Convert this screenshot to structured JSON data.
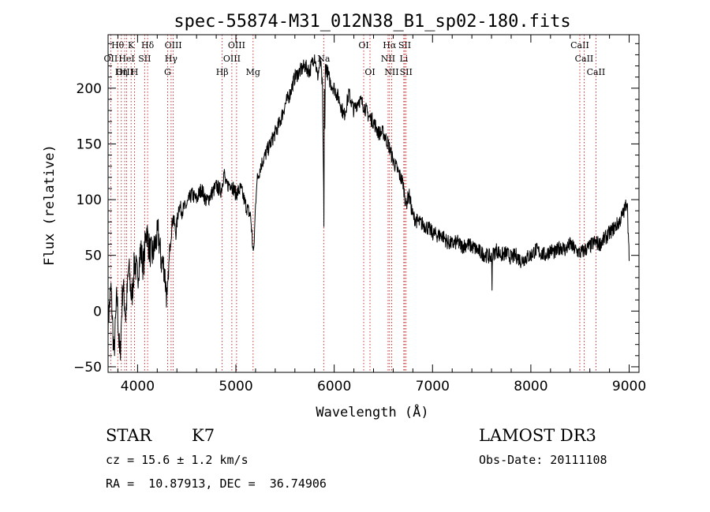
{
  "chart_data": {
    "type": "line",
    "title": "spec-55874-M31_012N38_B1_sp02-180.fits",
    "xlabel": "Wavelength (Å)",
    "ylabel": "Flux (relative)",
    "xlim": [
      3700,
      9100
    ],
    "ylim": [
      -55,
      248
    ],
    "xticks": [
      4000,
      5000,
      6000,
      7000,
      8000,
      9000
    ],
    "yticks": [
      -50,
      0,
      50,
      100,
      150,
      200
    ],
    "series": [
      {
        "name": "flux",
        "x": [
          3700,
          3730,
          3760,
          3790,
          3820,
          3850,
          3880,
          3910,
          3940,
          3970,
          4000,
          4030,
          4060,
          4090,
          4120,
          4150,
          4180,
          4210,
          4240,
          4270,
          4300,
          4330,
          4360,
          4390,
          4420,
          4450,
          4500,
          4550,
          4600,
          4650,
          4700,
          4750,
          4800,
          4850,
          4880,
          4900,
          4950,
          5000,
          5050,
          5100,
          5150,
          5170,
          5180,
          5190,
          5200,
          5210,
          5250,
          5300,
          5350,
          5400,
          5450,
          5500,
          5550,
          5600,
          5650,
          5700,
          5750,
          5800,
          5830,
          5860,
          5880,
          5890,
          5895,
          5900,
          5905,
          5910,
          5930,
          5960,
          6000,
          6050,
          6100,
          6150,
          6200,
          6250,
          6300,
          6350,
          6400,
          6450,
          6500,
          6550,
          6600,
          6650,
          6700,
          6730,
          6760,
          6800,
          6850,
          6900,
          6950,
          7000,
          7050,
          7100,
          7150,
          7200,
          7250,
          7300,
          7350,
          7400,
          7450,
          7500,
          7550,
          7600,
          7605,
          7610,
          7650,
          7700,
          7750,
          7800,
          7850,
          7900,
          7950,
          8000,
          8050,
          8100,
          8150,
          8200,
          8250,
          8300,
          8350,
          8400,
          8450,
          8500,
          8550,
          8600,
          8650,
          8700,
          8750,
          8800,
          8850,
          8900,
          8950,
          8980,
          9000
        ],
        "values": [
          -10,
          20,
          -40,
          15,
          -45,
          25,
          -5,
          40,
          10,
          45,
          30,
          55,
          40,
          75,
          55,
          50,
          60,
          70,
          45,
          40,
          10,
          60,
          85,
          70,
          95,
          90,
          95,
          105,
          100,
          110,
          98,
          105,
          112,
          108,
          125,
          112,
          115,
          105,
          110,
          95,
          85,
          60,
          50,
          72,
          95,
          115,
          130,
          140,
          150,
          160,
          170,
          185,
          195,
          210,
          215,
          220,
          215,
          230,
          210,
          225,
          200,
          130,
          80,
          200,
          160,
          220,
          215,
          205,
          200,
          190,
          175,
          195,
          180,
          190,
          185,
          175,
          170,
          160,
          160,
          150,
          135,
          125,
          115,
          95,
          105,
          85,
          80,
          78,
          75,
          70,
          68,
          68,
          62,
          60,
          62,
          58,
          60,
          58,
          55,
          52,
          50,
          48,
          25,
          50,
          55,
          50,
          52,
          48,
          50,
          45,
          48,
          50,
          55,
          52,
          50,
          55,
          52,
          58,
          55,
          60,
          55,
          52,
          55,
          58,
          62,
          60,
          65,
          70,
          75,
          80,
          90,
          100,
          45
        ]
      }
    ],
    "spectral_lines": [
      {
        "name": "Hθ",
        "wavelength": 3798,
        "row": 1
      },
      {
        "name": "OII",
        "wavelength": 3727,
        "row": 2
      },
      {
        "name": "OIII",
        "wavelength": 3869,
        "row": 3
      },
      {
        "name": "K",
        "wavelength": 3934,
        "row": 1
      },
      {
        "name": "HeI",
        "wavelength": 3889,
        "row": 2
      },
      {
        "name": "Hη",
        "wavelength": 3835,
        "row": 3
      },
      {
        "name": "SII",
        "wavelength": 4072,
        "row": 2
      },
      {
        "name": "H",
        "wavelength": 3969,
        "row": 3
      },
      {
        "name": "Hδ",
        "wavelength": 4102,
        "row": 1
      },
      {
        "name": "OIII",
        "wavelength": 4363,
        "row": 1
      },
      {
        "name": "Hγ",
        "wavelength": 4341,
        "row": 2
      },
      {
        "name": "G",
        "wavelength": 4305,
        "row": 3
      },
      {
        "name": "Hβ",
        "wavelength": 4861,
        "row": 3
      },
      {
        "name": "OIII",
        "wavelength": 4959,
        "row": 2
      },
      {
        "name": "OIII",
        "wavelength": 5007,
        "row": 1
      },
      {
        "name": "Mg",
        "wavelength": 5175,
        "row": 3
      },
      {
        "name": "Na",
        "wavelength": 5893,
        "row": 2
      },
      {
        "name": "OI",
        "wavelength": 6300,
        "row": 1
      },
      {
        "name": "OI",
        "wavelength": 6364,
        "row": 3
      },
      {
        "name": "Hα",
        "wavelength": 6563,
        "row": 1
      },
      {
        "name": "NII",
        "wavelength": 6548,
        "row": 2
      },
      {
        "name": "NII",
        "wavelength": 6584,
        "row": 3
      },
      {
        "name": "SII",
        "wavelength": 6717,
        "row": 1
      },
      {
        "name": "Li",
        "wavelength": 6708,
        "row": 2
      },
      {
        "name": "SII",
        "wavelength": 6731,
        "row": 3
      },
      {
        "name": "CaII",
        "wavelength": 8498,
        "row": 1
      },
      {
        "name": "CaII",
        "wavelength": 8542,
        "row": 2
      },
      {
        "name": "CaII",
        "wavelength": 8662,
        "row": 3
      }
    ]
  },
  "info": {
    "class": "STAR",
    "subclass": "K7",
    "survey": "LAMOST DR3",
    "cz": "cz = 15.6 ± 1.2 km/s",
    "obs_date": "Obs-Date: 20111108",
    "coords": "RA =  10.87913, DEC =  36.74906"
  }
}
